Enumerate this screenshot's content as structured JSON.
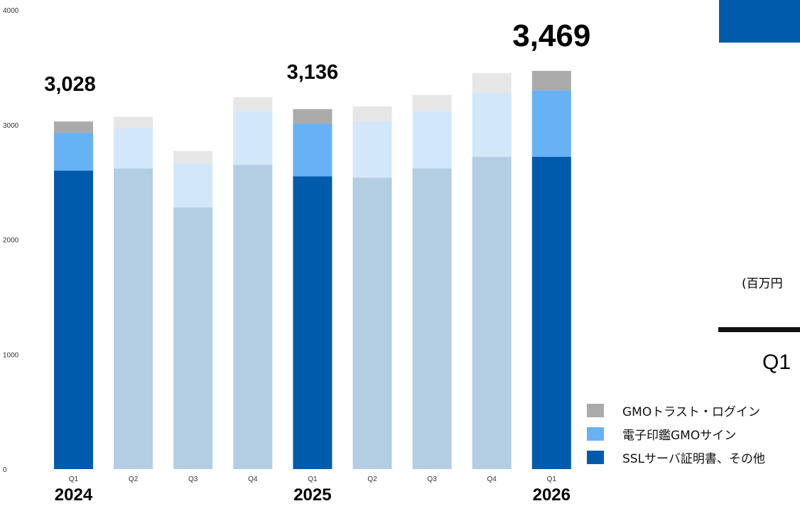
{
  "chart_data": {
    "type": "bar",
    "stacked": true,
    "categories": [
      "Q1",
      "Q2",
      "Q3",
      "Q4",
      "Q1",
      "Q2",
      "Q3",
      "Q4",
      "Q1"
    ],
    "years": [
      {
        "label": "2024",
        "index": 0
      },
      {
        "label": "2025",
        "index": 4
      },
      {
        "label": "2026",
        "index": 8
      }
    ],
    "highlighted": [
      0,
      4,
      8
    ],
    "series": [
      {
        "name": "SSLサーバ証明書、その他",
        "color": "#005bac",
        "faded_color": "#b3cde3",
        "values": [
          2600,
          2620,
          2280,
          2650,
          2550,
          2540,
          2620,
          2720,
          2720
        ]
      },
      {
        "name": "電子印鑑GMOサイン",
        "color": "#67b1f5",
        "faded_color": "#d3e7fb",
        "values": [
          330,
          350,
          380,
          470,
          460,
          490,
          500,
          560,
          580
        ]
      },
      {
        "name": "GMOトラスト・ログイン",
        "color": "#aaaaaa",
        "faded_color": "#e6e6e6",
        "values": [
          98,
          100,
          110,
          120,
          126,
          130,
          140,
          170,
          169
        ]
      }
    ],
    "totals": [
      {
        "index": 0,
        "label": "3,028"
      },
      {
        "index": 4,
        "label": "3,136"
      },
      {
        "index": 8,
        "label": "3,469"
      }
    ],
    "yticks": [
      "0",
      "1000",
      "2000",
      "3000",
      "4000"
    ],
    "ylim": [
      0,
      4000
    ]
  },
  "side_panel": {
    "unit_label": "(百万円",
    "quarter_label": "Q1"
  },
  "legend": {
    "items": [
      {
        "label": "GMOトラスト・ログイン",
        "color": "#aaaaaa"
      },
      {
        "label": "電子印鑑GMOサイン",
        "color": "#67b1f5"
      },
      {
        "label": "SSLサーバ証明書、その他",
        "color": "#005bac"
      }
    ]
  }
}
